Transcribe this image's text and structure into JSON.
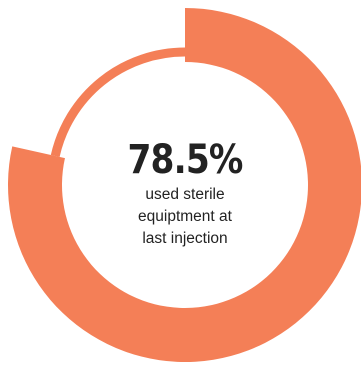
{
  "chart_data": {
    "type": "pie",
    "variant": "donut",
    "value_percent": 78.5,
    "remainder_percent": 21.5,
    "value_label": "78.5%",
    "caption_lines": [
      "used sterile",
      "equiptment at",
      "last injection"
    ],
    "colors": {
      "value_segment": "#F47F57",
      "remainder_ring": "#F47F57",
      "text": "#222222"
    }
  }
}
